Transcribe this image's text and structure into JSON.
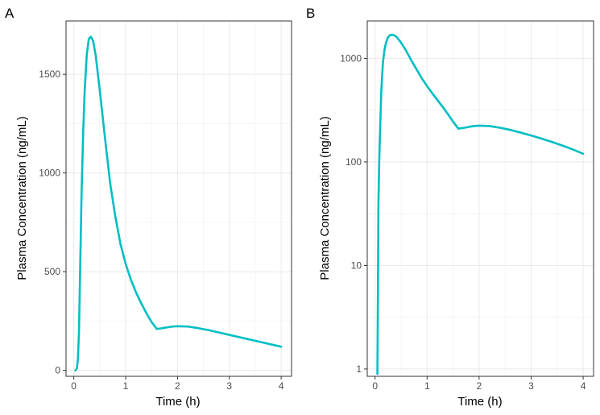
{
  "colors": {
    "line": "#00BFC4",
    "grid_major": "#EBEBEB",
    "grid_minor": "#F5F5F5",
    "border": "#333333"
  },
  "chart_data": [
    {
      "type": "line",
      "panel_label": "A",
      "xlabel": "Time (h)",
      "ylabel": "Plasma Concentration (ng/mL)",
      "yscale": "linear",
      "xlim": [
        -0.15,
        4.2
      ],
      "ylim": [
        -30,
        1770
      ],
      "xticks": [
        0,
        1,
        2,
        3,
        4
      ],
      "xtick_labels": [
        "0",
        "1",
        "2",
        "3",
        "4"
      ],
      "yticks": [
        0,
        500,
        1000,
        1500
      ],
      "ytick_labels": [
        "0",
        "500",
        "1000",
        "1500"
      ],
      "grid": true,
      "series": [
        {
          "x": [
            0.03,
            0.06,
            0.08,
            0.1,
            0.12,
            0.15,
            0.18,
            0.21,
            0.25,
            0.29,
            0.33,
            0.37,
            0.42,
            0.5,
            0.6,
            0.7,
            0.8,
            0.9,
            1.0,
            1.1,
            1.2,
            1.3,
            1.4,
            1.5,
            1.6,
            1.7,
            1.8,
            1.9,
            2.0,
            2.2,
            2.4,
            2.6,
            2.8,
            3.0,
            3.2,
            3.4,
            3.6,
            3.8,
            4.0
          ],
          "y": [
            0,
            10,
            60,
            200,
            480,
            900,
            1200,
            1420,
            1600,
            1680,
            1690,
            1670,
            1600,
            1420,
            1180,
            950,
            780,
            640,
            540,
            460,
            395,
            340,
            290,
            245,
            210,
            213,
            218,
            222,
            224,
            222,
            214,
            204,
            192,
            180,
            168,
            156,
            144,
            132,
            120
          ]
        }
      ]
    },
    {
      "type": "line",
      "panel_label": "B",
      "xlabel": "Time (h)",
      "ylabel": "Plasma Concentration (ng/mL)",
      "yscale": "log10",
      "xlim": [
        -0.15,
        4.2
      ],
      "ylim": [
        0.85,
        2300
      ],
      "xticks": [
        0,
        1,
        2,
        3,
        4
      ],
      "xtick_labels": [
        "0",
        "1",
        "2",
        "3",
        "4"
      ],
      "yticks": [
        1,
        10,
        100,
        1000
      ],
      "ytick_labels": [
        "1",
        "10",
        "100",
        "1000"
      ],
      "grid": true,
      "series": [
        {
          "x": [
            0.045,
            0.055,
            0.065,
            0.08,
            0.1,
            0.12,
            0.15,
            0.18,
            0.21,
            0.25,
            0.29,
            0.33,
            0.37,
            0.42,
            0.5,
            0.6,
            0.7,
            0.8,
            0.9,
            1.0,
            1.1,
            1.2,
            1.3,
            1.4,
            1.5,
            1.6,
            1.7,
            1.8,
            1.9,
            2.0,
            2.2,
            2.4,
            2.6,
            2.8,
            3.0,
            3.2,
            3.4,
            3.6,
            3.8,
            4.0
          ],
          "y": [
            0.9,
            5,
            40,
            100,
            230,
            480,
            900,
            1200,
            1420,
            1600,
            1680,
            1690,
            1670,
            1600,
            1420,
            1180,
            950,
            780,
            640,
            540,
            460,
            395,
            340,
            290,
            245,
            210,
            213,
            218,
            222,
            224,
            222,
            214,
            204,
            192,
            180,
            168,
            156,
            144,
            132,
            120
          ]
        }
      ]
    }
  ]
}
